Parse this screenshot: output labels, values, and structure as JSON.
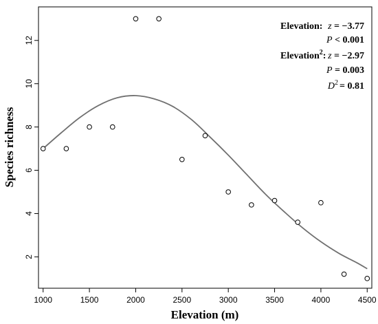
{
  "chart_data": {
    "type": "scatter",
    "xlabel": "Elevation (m)",
    "ylabel": "Species richness",
    "xlim": [
      950,
      4550
    ],
    "ylim": [
      0.55,
      13.55
    ],
    "x_ticks": [
      "1000",
      "1500",
      "2000",
      "2500",
      "3000",
      "3500",
      "4000",
      "4500"
    ],
    "y_ticks": [
      "2",
      "4",
      "6",
      "8",
      "10",
      "12"
    ],
    "grid": false,
    "series": [
      {
        "points": [
          {
            "x": 1000,
            "y": 7.0
          },
          {
            "x": 1250,
            "y": 7.0
          },
          {
            "x": 1500,
            "y": 8.0
          },
          {
            "x": 1750,
            "y": 8.0
          },
          {
            "x": 2000,
            "y": 13.0
          },
          {
            "x": 2250,
            "y": 13.0
          },
          {
            "x": 2500,
            "y": 6.5
          },
          {
            "x": 2750,
            "y": 7.6
          },
          {
            "x": 3000,
            "y": 5.0
          },
          {
            "x": 3250,
            "y": 4.4
          },
          {
            "x": 3500,
            "y": 4.6
          },
          {
            "x": 3750,
            "y": 3.6
          },
          {
            "x": 4000,
            "y": 4.5
          },
          {
            "x": 4250,
            "y": 1.2
          },
          {
            "x": 4500,
            "y": 1.0
          }
        ]
      }
    ],
    "fit_curve": [
      {
        "x": 1000,
        "y": 7.0
      },
      {
        "x": 1200,
        "y": 7.75
      },
      {
        "x": 1400,
        "y": 8.45
      },
      {
        "x": 1600,
        "y": 9.0
      },
      {
        "x": 1800,
        "y": 9.35
      },
      {
        "x": 2000,
        "y": 9.45
      },
      {
        "x": 2200,
        "y": 9.3
      },
      {
        "x": 2400,
        "y": 8.95
      },
      {
        "x": 2600,
        "y": 8.35
      },
      {
        "x": 2800,
        "y": 7.55
      },
      {
        "x": 3000,
        "y": 6.7
      },
      {
        "x": 3200,
        "y": 5.8
      },
      {
        "x": 3400,
        "y": 4.9
      },
      {
        "x": 3600,
        "y": 4.1
      },
      {
        "x": 3800,
        "y": 3.35
      },
      {
        "x": 4000,
        "y": 2.7
      },
      {
        "x": 4200,
        "y": 2.15
      },
      {
        "x": 4400,
        "y": 1.7
      },
      {
        "x": 4500,
        "y": 1.45
      }
    ],
    "fit_color": "#707070",
    "annotations": {
      "elev_label": "Elevation:",
      "elev_z_sym": "z",
      "elev_z_val": " = −3.77",
      "elev_p_sym": "P",
      "elev_p_val": " < 0.001",
      "elev2_label": "Elevation",
      "elev2_sup": "2",
      "elev2_colon": ":",
      "elev2_z_sym": "z",
      "elev2_z_val": " = −2.97",
      "elev2_p_sym": "P",
      "elev2_p_val": " = 0.003",
      "d2_sym": "D",
      "d2_sup": "2",
      "d2_val": "= 0.81"
    }
  }
}
